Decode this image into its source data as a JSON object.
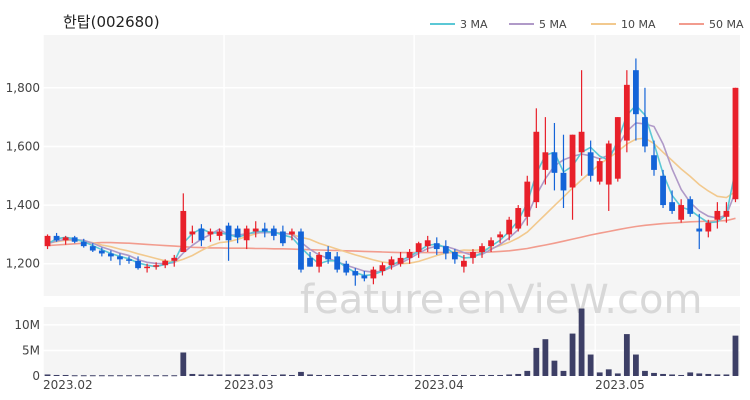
{
  "title": "한탑(002680)",
  "watermark": "feature.enVieW.com",
  "legend": [
    {
      "label": "3 MA",
      "color": "#5bc8d6"
    },
    {
      "label": "5 MA",
      "color": "#b09ac8"
    },
    {
      "label": "10 MA",
      "color": "#f2c98e"
    },
    {
      "label": "50 MA",
      "color": "#f29c8e"
    }
  ],
  "colors": {
    "up": "#e8202a",
    "down": "#1464d8",
    "volume": "#3d3f66",
    "panel_bg": "#f5f5f5",
    "grid": "#ffffff"
  },
  "chart_data": [
    {
      "type": "candlestick",
      "title": "한탑(002680)",
      "y_ticks": [
        "1,200",
        "1,400",
        "1,600",
        "1,800"
      ],
      "y_tick_values": [
        1200,
        1400,
        1600,
        1800
      ],
      "ylim": [
        1090,
        1980
      ],
      "x_ticks": [
        "2023.02",
        "2023.03",
        "2023.04",
        "2023.05"
      ],
      "x_tick_index": [
        0,
        20,
        41,
        61
      ],
      "ohlc": [
        [
          1260,
          1300,
          1250,
          1295
        ],
        [
          1295,
          1305,
          1275,
          1280
        ],
        [
          1280,
          1295,
          1265,
          1290
        ],
        [
          1290,
          1295,
          1270,
          1275
        ],
        [
          1275,
          1285,
          1255,
          1260
        ],
        [
          1260,
          1270,
          1240,
          1245
        ],
        [
          1245,
          1255,
          1225,
          1235
        ],
        [
          1235,
          1245,
          1210,
          1225
        ],
        [
          1225,
          1235,
          1195,
          1215
        ],
        [
          1215,
          1225,
          1200,
          1210
        ],
        [
          1210,
          1225,
          1180,
          1185
        ],
        [
          1185,
          1200,
          1170,
          1190
        ],
        [
          1190,
          1205,
          1180,
          1195
        ],
        [
          1195,
          1215,
          1185,
          1210
        ],
        [
          1210,
          1230,
          1190,
          1220
        ],
        [
          1240,
          1440,
          1240,
          1380
        ],
        [
          1300,
          1330,
          1270,
          1310
        ],
        [
          1320,
          1335,
          1260,
          1280
        ],
        [
          1300,
          1320,
          1275,
          1310
        ],
        [
          1295,
          1320,
          1280,
          1310
        ],
        [
          1330,
          1340,
          1210,
          1280
        ],
        [
          1320,
          1330,
          1270,
          1290
        ],
        [
          1280,
          1330,
          1250,
          1320
        ],
        [
          1310,
          1345,
          1290,
          1320
        ],
        [
          1320,
          1340,
          1290,
          1310
        ],
        [
          1320,
          1330,
          1280,
          1295
        ],
        [
          1310,
          1330,
          1260,
          1270
        ],
        [
          1300,
          1320,
          1280,
          1310
        ],
        [
          1310,
          1320,
          1170,
          1180
        ],
        [
          1220,
          1240,
          1190,
          1190
        ],
        [
          1190,
          1240,
          1170,
          1230
        ],
        [
          1240,
          1260,
          1200,
          1215
        ],
        [
          1225,
          1240,
          1170,
          1180
        ],
        [
          1200,
          1210,
          1160,
          1170
        ],
        [
          1175,
          1185,
          1125,
          1160
        ],
        [
          1160,
          1175,
          1140,
          1150
        ],
        [
          1150,
          1190,
          1130,
          1180
        ],
        [
          1175,
          1205,
          1160,
          1195
        ],
        [
          1195,
          1225,
          1180,
          1215
        ],
        [
          1200,
          1240,
          1190,
          1220
        ],
        [
          1220,
          1250,
          1200,
          1240
        ],
        [
          1240,
          1275,
          1220,
          1270
        ],
        [
          1260,
          1295,
          1240,
          1280
        ],
        [
          1270,
          1290,
          1230,
          1250
        ],
        [
          1260,
          1280,
          1215,
          1235
        ],
        [
          1240,
          1250,
          1200,
          1215
        ],
        [
          1190,
          1230,
          1170,
          1210
        ],
        [
          1220,
          1250,
          1200,
          1240
        ],
        [
          1240,
          1270,
          1220,
          1260
        ],
        [
          1260,
          1290,
          1240,
          1280
        ],
        [
          1290,
          1310,
          1270,
          1300
        ],
        [
          1300,
          1360,
          1280,
          1350
        ],
        [
          1320,
          1400,
          1310,
          1390
        ],
        [
          1360,
          1500,
          1330,
          1480
        ],
        [
          1410,
          1730,
          1390,
          1650
        ],
        [
          1520,
          1700,
          1470,
          1580
        ],
        [
          1580,
          1680,
          1450,
          1510
        ],
        [
          1510,
          1640,
          1390,
          1450
        ],
        [
          1460,
          1640,
          1350,
          1640
        ],
        [
          1580,
          1860,
          1500,
          1650
        ],
        [
          1580,
          1620,
          1480,
          1500
        ],
        [
          1480,
          1560,
          1470,
          1550
        ],
        [
          1470,
          1620,
          1380,
          1610
        ],
        [
          1490,
          1700,
          1480,
          1700
        ],
        [
          1620,
          1860,
          1580,
          1810
        ],
        [
          1860,
          1900,
          1620,
          1710
        ],
        [
          1700,
          1800,
          1580,
          1600
        ],
        [
          1570,
          1620,
          1500,
          1520
        ],
        [
          1500,
          1520,
          1390,
          1400
        ],
        [
          1410,
          1450,
          1370,
          1380
        ],
        [
          1350,
          1420,
          1340,
          1400
        ],
        [
          1420,
          1430,
          1360,
          1370
        ],
        [
          1320,
          1370,
          1250,
          1310
        ],
        [
          1310,
          1350,
          1290,
          1340
        ],
        [
          1350,
          1410,
          1320,
          1380
        ],
        [
          1360,
          1410,
          1340,
          1380
        ],
        [
          1420,
          1800,
          1410,
          1800
        ]
      ],
      "ma": {
        "3 MA": [
          1268,
          1285,
          1290,
          1285,
          1275,
          1262,
          1248,
          1235,
          1225,
          1217,
          1203,
          1195,
          1190,
          1198,
          1208,
          1270,
          1303,
          1320,
          1305,
          1305,
          1300,
          1290,
          1300,
          1310,
          1310,
          1308,
          1298,
          1290,
          1255,
          1225,
          1200,
          1210,
          1210,
          1188,
          1170,
          1160,
          1163,
          1175,
          1195,
          1210,
          1225,
          1243,
          1263,
          1267,
          1255,
          1233,
          1220,
          1222,
          1237,
          1260,
          1280,
          1310,
          1347,
          1407,
          1507,
          1570,
          1580,
          1513,
          1533,
          1580,
          1597,
          1567,
          1553,
          1620,
          1707,
          1740,
          1707,
          1610,
          1507,
          1433,
          1393,
          1383,
          1360,
          1340,
          1343,
          1367,
          1520
        ],
        "5 MA": [
          1268,
          1278,
          1283,
          1282,
          1280,
          1270,
          1257,
          1247,
          1236,
          1228,
          1214,
          1205,
          1201,
          1200,
          1204,
          1237,
          1263,
          1284,
          1300,
          1318,
          1298,
          1298,
          1302,
          1306,
          1306,
          1307,
          1303,
          1301,
          1273,
          1249,
          1230,
          1219,
          1207,
          1195,
          1185,
          1175,
          1171,
          1175,
          1188,
          1202,
          1218,
          1236,
          1252,
          1260,
          1259,
          1250,
          1238,
          1228,
          1232,
          1249,
          1266,
          1288,
          1316,
          1362,
          1434,
          1490,
          1534,
          1554,
          1566,
          1574,
          1568,
          1558,
          1570,
          1602,
          1652,
          1680,
          1677,
          1668,
          1608,
          1523,
          1453,
          1409,
          1380,
          1362,
          1356,
          1366,
          1446
        ],
        "10 MA": [
          1270,
          1275,
          1280,
          1280,
          1278,
          1272,
          1264,
          1258,
          1250,
          1243,
          1234,
          1226,
          1218,
          1210,
          1206,
          1215,
          1228,
          1245,
          1261,
          1272,
          1275,
          1283,
          1293,
          1302,
          1310,
          1307,
          1304,
          1300,
          1290,
          1283,
          1270,
          1260,
          1250,
          1240,
          1230,
          1222,
          1213,
          1206,
          1202,
          1200,
          1202,
          1208,
          1218,
          1228,
          1236,
          1242,
          1247,
          1246,
          1248,
          1252,
          1262,
          1273,
          1288,
          1308,
          1338,
          1368,
          1398,
          1428,
          1458,
          1486,
          1513,
          1540,
          1560,
          1583,
          1608,
          1625,
          1628,
          1610,
          1580,
          1552,
          1523,
          1498,
          1470,
          1448,
          1430,
          1426,
          1446
        ],
        "50 MA": [
          1262,
          1264,
          1266,
          1268,
          1270,
          1271,
          1272,
          1272,
          1271,
          1270,
          1268,
          1266,
          1264,
          1262,
          1260,
          1258,
          1256,
          1255,
          1254,
          1254,
          1253,
          1253,
          1253,
          1252,
          1252,
          1251,
          1251,
          1250,
          1249,
          1248,
          1247,
          1246,
          1245,
          1244,
          1243,
          1242,
          1241,
          1240,
          1239,
          1238,
          1238,
          1238,
          1238,
          1238,
          1238,
          1238,
          1238,
          1238,
          1239,
          1240,
          1242,
          1244,
          1248,
          1252,
          1258,
          1264,
          1270,
          1277,
          1284,
          1291,
          1298,
          1304,
          1310,
          1316,
          1322,
          1327,
          1331,
          1334,
          1337,
          1339,
          1341,
          1343,
          1344,
          1345,
          1346,
          1347,
          1355
        ]
      }
    },
    {
      "type": "bar",
      "title": "",
      "y_ticks": [
        "0",
        "5M",
        "10M"
      ],
      "y_tick_values": [
        0,
        5000000,
        10000000
      ],
      "ylim": [
        0,
        13500000
      ],
      "values": [
        300000,
        200000,
        200000,
        150000,
        150000,
        150000,
        150000,
        150000,
        150000,
        150000,
        150000,
        150000,
        150000,
        150000,
        150000,
        4600000,
        400000,
        300000,
        300000,
        300000,
        300000,
        300000,
        300000,
        300000,
        200000,
        200000,
        300000,
        200000,
        800000,
        300000,
        200000,
        200000,
        200000,
        200000,
        200000,
        200000,
        200000,
        200000,
        200000,
        200000,
        200000,
        200000,
        200000,
        200000,
        200000,
        200000,
        200000,
        200000,
        200000,
        200000,
        200000,
        300000,
        400000,
        1000000,
        5500000,
        7200000,
        3000000,
        1000000,
        8300000,
        13200000,
        4200000,
        700000,
        1300000,
        500000,
        8200000,
        4200000,
        1000000,
        600000,
        400000,
        300000,
        200000,
        700000,
        500000,
        400000,
        300000,
        300000,
        7900000
      ]
    }
  ]
}
